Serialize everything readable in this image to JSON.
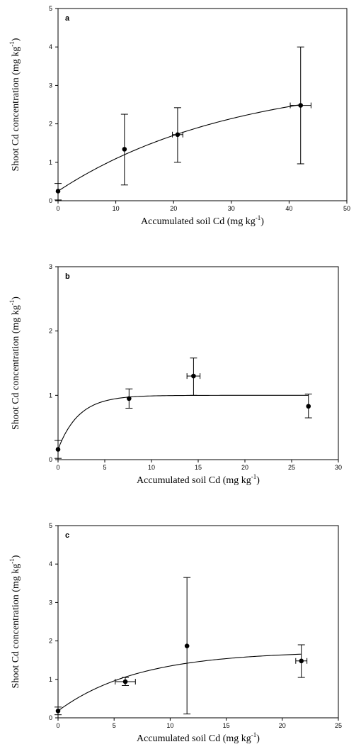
{
  "chart_data": [
    {
      "type": "scatter",
      "panel_label": "a",
      "xlabel": {
        "main": "Accumulated soil Cd (mg kg",
        "sup": "-1",
        "tail": ")"
      },
      "ylabel": {
        "main": "Shoot Cd concentration (mg kg",
        "sup": "-1",
        "tail": ")"
      },
      "xlim": [
        0,
        50
      ],
      "ylim": [
        0,
        5
      ],
      "xticks": [
        0,
        10,
        20,
        30,
        40,
        50
      ],
      "yticks": [
        0,
        1,
        2,
        3,
        4,
        5
      ],
      "points": [
        {
          "x": 0,
          "y": 0.25,
          "xerr": 0,
          "ylo": 0.02,
          "yhi": 0.45
        },
        {
          "x": 11.5,
          "y": 1.34,
          "xerr": 0,
          "ylo": 0.41,
          "yhi": 2.25
        },
        {
          "x": 20.7,
          "y": 1.72,
          "xerr": 0.9,
          "ylo": 1.0,
          "yhi": 2.42
        },
        {
          "x": 42,
          "y": 2.48,
          "xerr": 1.8,
          "ylo": 0.96,
          "yhi": 4.0
        }
      ],
      "fit": {
        "model": "y0 + a*(1 - exp(-b*x))",
        "y0": 0.25,
        "a": 3.0,
        "b": 0.033
      },
      "grid": false
    },
    {
      "type": "scatter",
      "panel_label": "b",
      "xlabel": {
        "main": "Accumulated soil Cd (mg kg",
        "sup": "-1",
        "tail": ")"
      },
      "ylabel": {
        "main": "Shoot Cd concentration (mg kg",
        "sup": "-1",
        "tail": ")"
      },
      "xlim": [
        0,
        30
      ],
      "ylim": [
        0,
        3
      ],
      "xticks": [
        0,
        5,
        10,
        15,
        20,
        25,
        30
      ],
      "yticks": [
        0,
        1,
        2,
        3
      ],
      "points": [
        {
          "x": 0,
          "y": 0.16,
          "xerr": 0,
          "ylo": 0.02,
          "yhi": 0.3
        },
        {
          "x": 7.6,
          "y": 0.95,
          "xerr": 0,
          "ylo": 0.8,
          "yhi": 1.1
        },
        {
          "x": 14.5,
          "y": 1.3,
          "xerr": 0.7,
          "ylo": 1.0,
          "yhi": 1.58
        },
        {
          "x": 26.8,
          "y": 0.83,
          "xerr": 0,
          "ylo": 0.65,
          "yhi": 1.02
        }
      ],
      "fit": {
        "model": "y0 + a*(1 - exp(-b*x))",
        "y0": 0.16,
        "a": 0.84,
        "b": 0.45
      },
      "grid": false
    },
    {
      "type": "scatter",
      "panel_label": "c",
      "xlabel": {
        "main": "Accumulated soil Cd (mg kg",
        "sup": "-1",
        "tail": ")"
      },
      "ylabel": {
        "main": "Shoot Cd concentration (mg kg",
        "sup": "-1",
        "tail": ")"
      },
      "xlim": [
        0,
        25
      ],
      "ylim": [
        0,
        5
      ],
      "xticks": [
        0,
        5,
        10,
        15,
        20,
        25
      ],
      "yticks": [
        0,
        1,
        2,
        3,
        4,
        5
      ],
      "points": [
        {
          "x": 0,
          "y": 0.18,
          "xerr": 0,
          "ylo": 0.08,
          "yhi": 0.28
        },
        {
          "x": 6,
          "y": 0.94,
          "xerr": 0.9,
          "ylo": 0.84,
          "yhi": 1.05
        },
        {
          "x": 11.5,
          "y": 1.87,
          "xerr": 0,
          "ylo": 0.1,
          "yhi": 3.65
        },
        {
          "x": 21.7,
          "y": 1.48,
          "xerr": 0.5,
          "ylo": 1.05,
          "yhi": 1.9
        }
      ],
      "fit": {
        "model": "y0 + a*(1 - exp(-b*x))",
        "y0": 0.18,
        "a": 1.55,
        "b": 0.14
      },
      "grid": false
    }
  ]
}
